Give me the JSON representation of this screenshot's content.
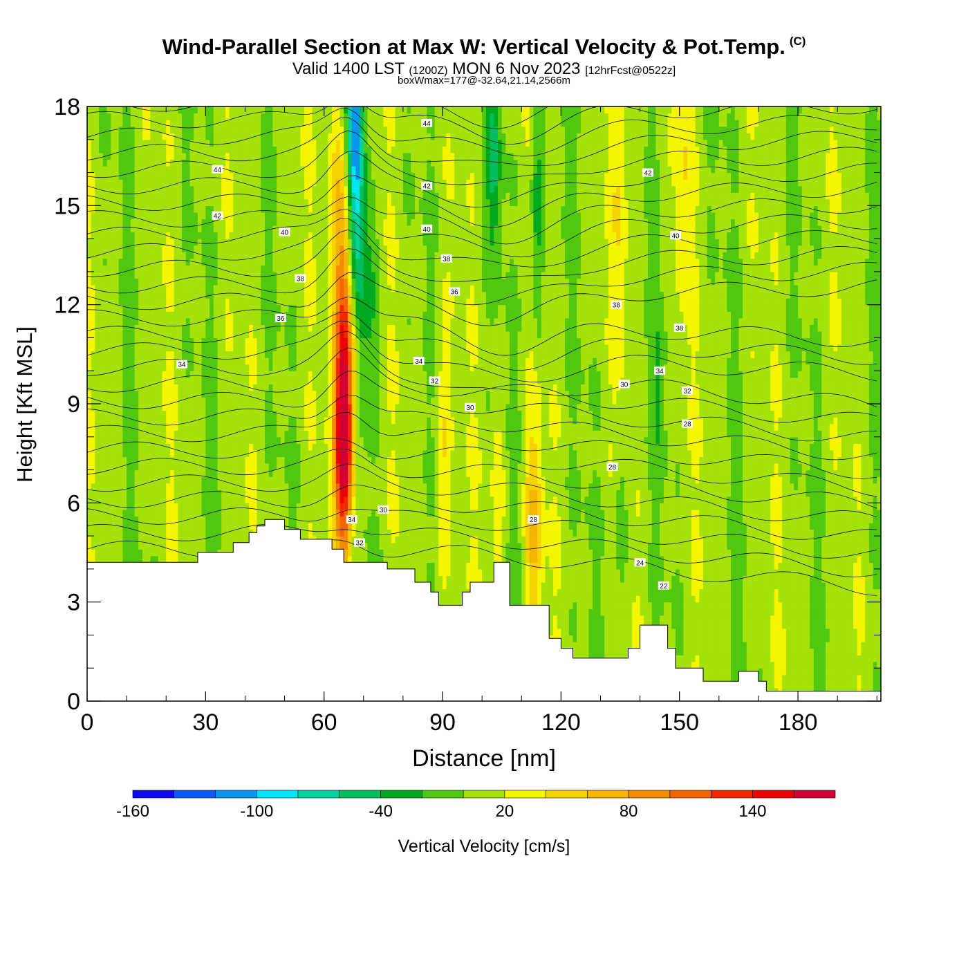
{
  "title": {
    "main": "Wind-Parallel Section at Max W: Vertical Velocity & Pot.Temp.",
    "copyright": "(C)",
    "valid_prefix": "Valid 1400 LST",
    "valid_utc": "(1200Z)",
    "valid_date": "MON 6 Nov 2023",
    "forecast": "[12hrFcst@0522z]",
    "boxinfo": "boxWmax=177@-32.64,21.14,2566m"
  },
  "chart_data": {
    "type": "contour-section",
    "title": "Wind-Parallel Section at Max W: Vertical Velocity & Pot.Temp.",
    "xlabel": "Distance [nm]",
    "ylabel": "Height [Kft MSL]",
    "xlim": [
      0,
      201
    ],
    "ylim": [
      0,
      18
    ],
    "xticks": [
      0,
      30,
      60,
      90,
      120,
      150,
      180
    ],
    "yticks": [
      0,
      3,
      6,
      9,
      12,
      15,
      18
    ],
    "colorbar": {
      "label": "Vertical Velocity [cm/s]",
      "levels": [
        -160,
        -140,
        -120,
        -100,
        -80,
        -60,
        -40,
        -20,
        0,
        20,
        40,
        60,
        80,
        100,
        120,
        140,
        160,
        180
      ],
      "tick_labels": [
        "-160",
        "-100",
        "-40",
        "20",
        "80",
        "140"
      ],
      "tick_values": [
        -160,
        -100,
        -40,
        20,
        80,
        140
      ],
      "colors": [
        "#0a0af0",
        "#0f5af5",
        "#0a96f0",
        "#00e6f5",
        "#00d2a0",
        "#00be5f",
        "#00aa1e",
        "#50c80f",
        "#a5e10a",
        "#f5f500",
        "#f5d200",
        "#f5b400",
        "#f58c00",
        "#f56400",
        "#f52800",
        "#f00000",
        "#d20032"
      ]
    },
    "terrain_kft": [
      [
        0,
        4.2
      ],
      [
        28,
        4.2
      ],
      [
        28,
        4.5
      ],
      [
        37,
        4.5
      ],
      [
        37,
        4.8
      ],
      [
        41,
        4.8
      ],
      [
        41,
        5.1
      ],
      [
        43,
        5.1
      ],
      [
        43,
        5.3
      ],
      [
        45,
        5.3
      ],
      [
        45,
        5.5
      ],
      [
        50,
        5.5
      ],
      [
        50,
        5.2
      ],
      [
        54,
        5.2
      ],
      [
        54,
        4.9
      ],
      [
        62,
        4.9
      ],
      [
        62,
        4.6
      ],
      [
        65,
        4.6
      ],
      [
        65,
        4.2
      ],
      [
        76,
        4.2
      ],
      [
        76,
        4.0
      ],
      [
        83,
        4.0
      ],
      [
        83,
        3.6
      ],
      [
        87,
        3.6
      ],
      [
        87,
        3.3
      ],
      [
        89,
        3.3
      ],
      [
        89,
        2.9
      ],
      [
        95,
        2.9
      ],
      [
        95,
        3.3
      ],
      [
        97,
        3.3
      ],
      [
        97,
        3.6
      ],
      [
        103,
        3.6
      ],
      [
        103,
        4.2
      ],
      [
        107,
        4.2
      ],
      [
        107,
        2.9
      ],
      [
        117,
        2.9
      ],
      [
        117,
        1.9
      ],
      [
        120,
        1.9
      ],
      [
        120,
        1.6
      ],
      [
        123,
        1.6
      ],
      [
        123,
        1.3
      ],
      [
        137,
        1.3
      ],
      [
        137,
        1.6
      ],
      [
        140,
        1.6
      ],
      [
        140,
        2.3
      ],
      [
        147,
        2.3
      ],
      [
        147,
        1.6
      ],
      [
        149,
        1.6
      ],
      [
        149,
        1.0
      ],
      [
        156,
        1.0
      ],
      [
        156,
        0.6
      ],
      [
        165,
        0.6
      ],
      [
        165,
        0.9
      ],
      [
        170,
        0.9
      ],
      [
        170,
        0.6
      ],
      [
        172,
        0.6
      ],
      [
        172,
        0.3
      ],
      [
        201,
        0.3
      ]
    ],
    "w_field_summary": [
      {
        "feature": "updraft core",
        "x": [
          63,
          69
        ],
        "y": [
          4.6,
          18
        ],
        "peak_cm_s": 177
      },
      {
        "feature": "downdraft core",
        "x": [
          66,
          72
        ],
        "y": [
          12,
          18
        ],
        "min_cm_s": -110
      },
      {
        "feature": "secondary updraft",
        "x": [
          109,
          116
        ],
        "y": [
          2,
          9
        ],
        "peak_cm_s": 60
      }
    ],
    "theta_contour_labels": [
      {
        "label": "44",
        "x": 33,
        "y": 16.1
      },
      {
        "label": "42",
        "x": 33,
        "y": 14.7
      },
      {
        "label": "40",
        "x": 50,
        "y": 14.2
      },
      {
        "label": "38",
        "x": 54,
        "y": 12.8
      },
      {
        "label": "36",
        "x": 49,
        "y": 11.6
      },
      {
        "label": "34",
        "x": 24,
        "y": 10.2
      },
      {
        "label": "44",
        "x": 86,
        "y": 17.5
      },
      {
        "label": "42",
        "x": 86,
        "y": 15.6
      },
      {
        "label": "40",
        "x": 86,
        "y": 14.3
      },
      {
        "label": "38",
        "x": 91,
        "y": 13.4
      },
      {
        "label": "36",
        "x": 93,
        "y": 12.4
      },
      {
        "label": "34",
        "x": 84,
        "y": 10.3
      },
      {
        "label": "32",
        "x": 88,
        "y": 9.7
      },
      {
        "label": "30",
        "x": 97,
        "y": 8.9
      },
      {
        "label": "34",
        "x": 67,
        "y": 5.5
      },
      {
        "label": "32",
        "x": 69,
        "y": 4.8
      },
      {
        "label": "30",
        "x": 75,
        "y": 5.8
      },
      {
        "label": "28",
        "x": 113,
        "y": 5.5
      },
      {
        "label": "28",
        "x": 133,
        "y": 7.1
      },
      {
        "label": "42",
        "x": 142,
        "y": 16.0
      },
      {
        "label": "40",
        "x": 149,
        "y": 14.1
      },
      {
        "label": "38",
        "x": 134,
        "y": 12.0
      },
      {
        "label": "38",
        "x": 150,
        "y": 11.3
      },
      {
        "label": "34",
        "x": 145,
        "y": 10.0
      },
      {
        "label": "30",
        "x": 136,
        "y": 9.6
      },
      {
        "label": "32",
        "x": 152,
        "y": 9.4
      },
      {
        "label": "28",
        "x": 152,
        "y": 8.4
      },
      {
        "label": "24",
        "x": 140,
        "y": 4.2
      },
      {
        "label": "22",
        "x": 146,
        "y": 3.5
      }
    ]
  }
}
